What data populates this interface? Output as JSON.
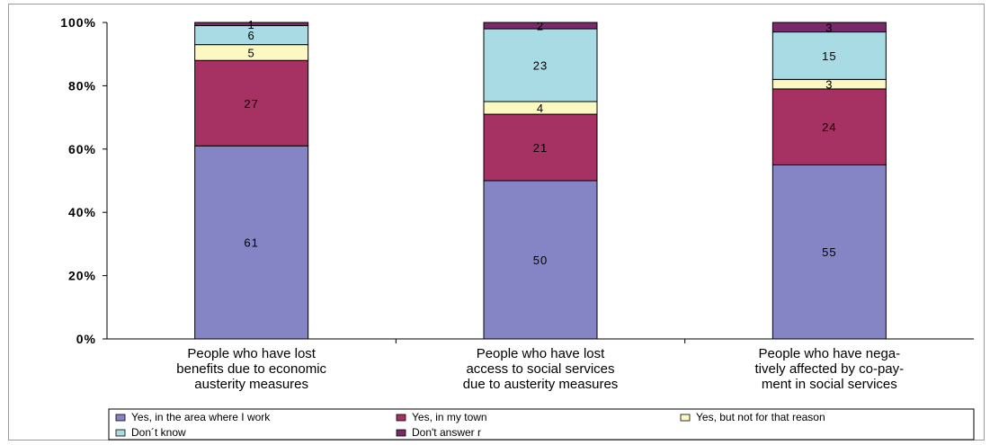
{
  "chart_data": {
    "type": "bar",
    "stacked": true,
    "percent": true,
    "title": "",
    "xlabel": "",
    "ylabel": "",
    "ylim": [
      0,
      100
    ],
    "yticks": [
      "0%",
      "20%",
      "40%",
      "60%",
      "80%",
      "100%"
    ],
    "categories": [
      "People who have lost benefits due to economic austerity measures",
      "People who have lost access to social services due to austerity measures",
      "People who have nega-tively affected by co-pay-ment in social services"
    ],
    "category_lines": [
      [
        "People who have lost",
        "benefits due to economic",
        "austerity measures"
      ],
      [
        "People who have lost",
        "access to social services",
        "due to austerity measures"
      ],
      [
        "People who have nega-",
        "tively affected by co-pay-",
        "ment in social services"
      ]
    ],
    "series": [
      {
        "name": "Yes, in the area where I work",
        "color": "#8585c6",
        "values": [
          61,
          50,
          55
        ]
      },
      {
        "name": "Yes, in my town",
        "color": "#a63264",
        "values": [
          27,
          21,
          24
        ]
      },
      {
        "name": "Yes, but not for that reason",
        "color": "#fbf8c2",
        "values": [
          5,
          4,
          3
        ]
      },
      {
        "name": "Don´t know",
        "color": "#a8dbe3",
        "values": [
          6,
          23,
          15
        ]
      },
      {
        "name": "Don't answer r",
        "color": "#7a2a6b",
        "values": [
          1,
          2,
          3
        ]
      }
    ],
    "legend_position": "bottom",
    "grid": false
  }
}
